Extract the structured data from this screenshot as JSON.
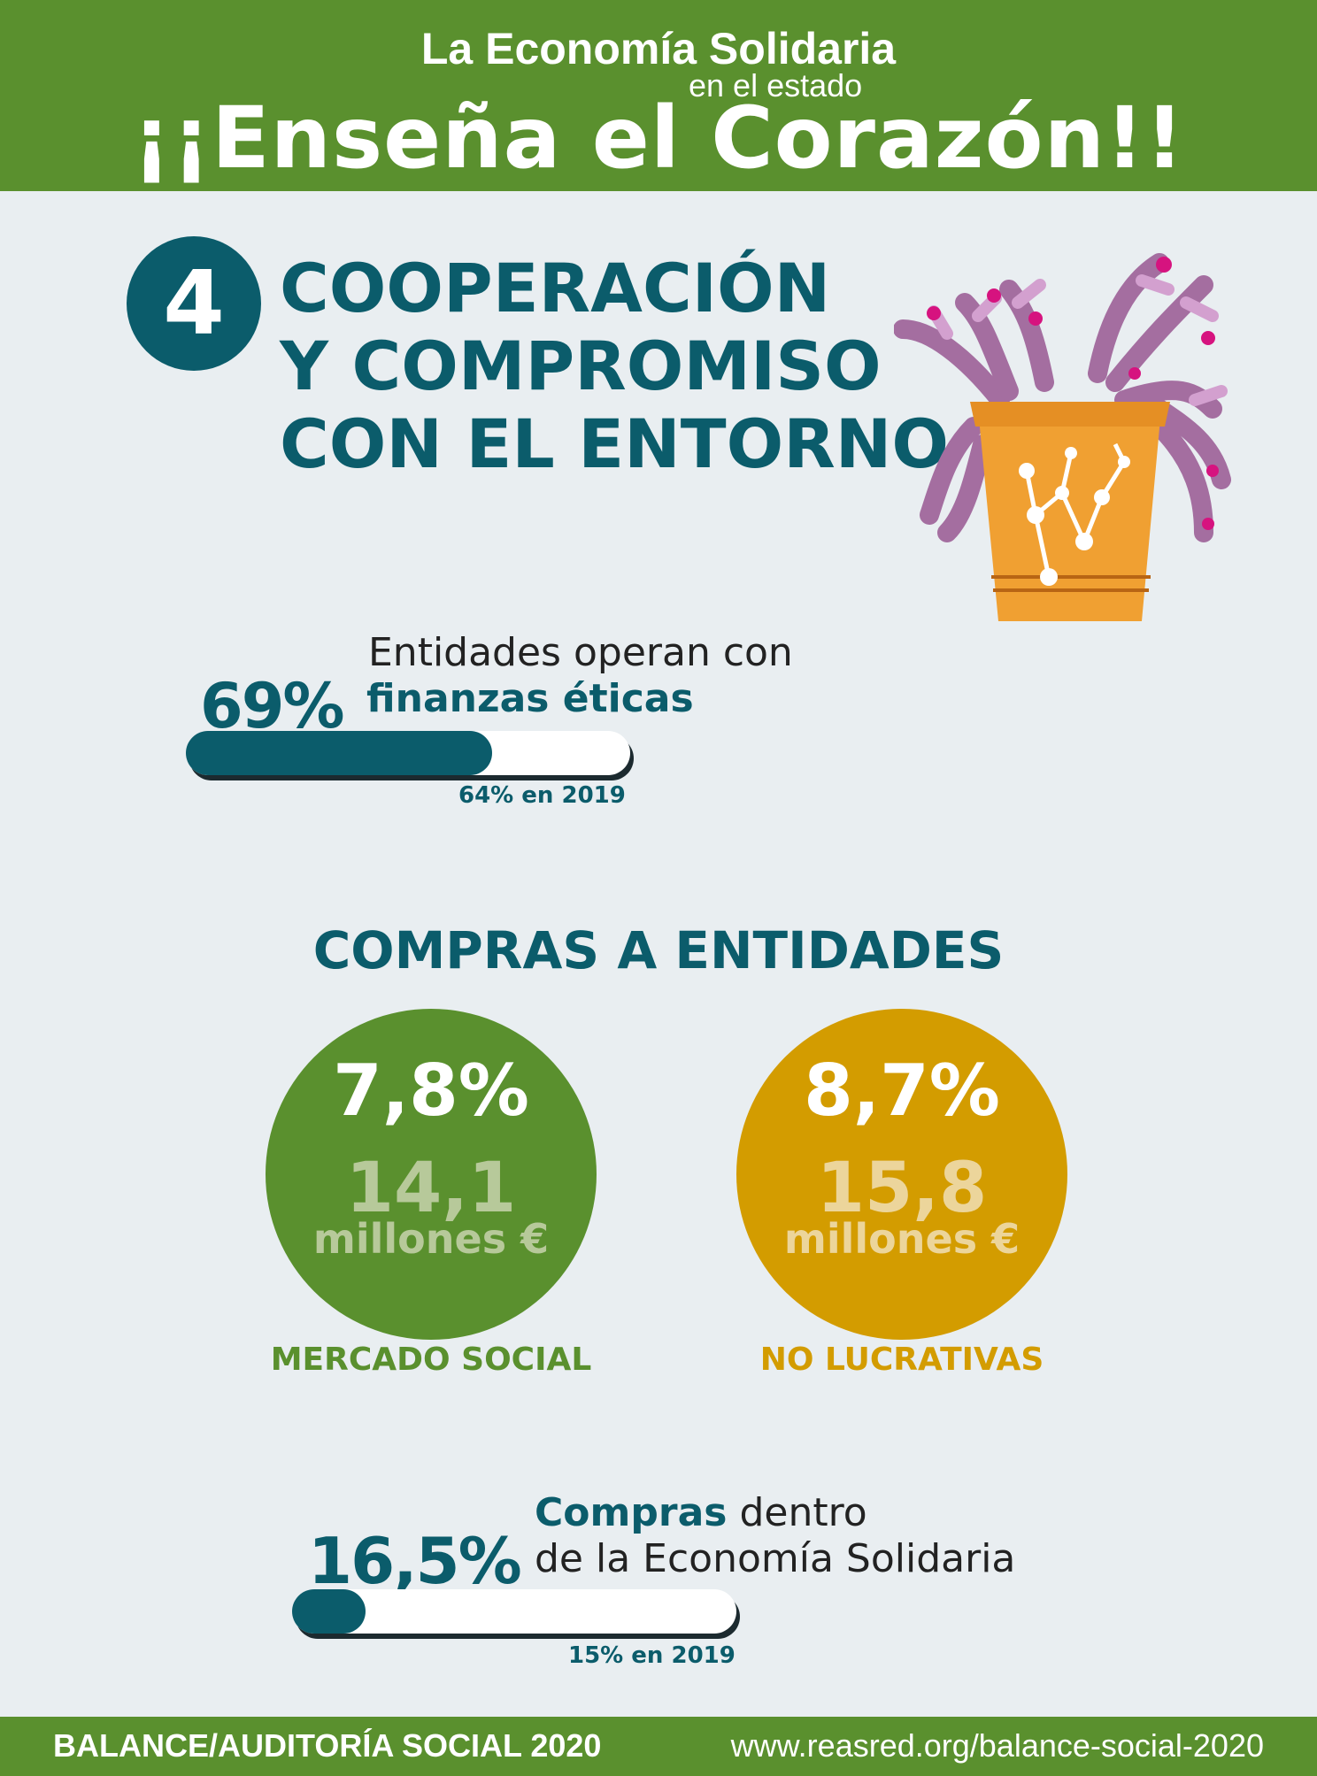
{
  "header": {
    "line1": "La Economía Solidaria",
    "line2": "en el estado",
    "line3": "¡¡Enseña el Corazón!!"
  },
  "section": {
    "number": "4",
    "title_line1": "COOPERACIÓN",
    "title_line2": "Y COMPROMISO",
    "title_line3": "CON EL ENTORNO"
  },
  "stat_finanzas": {
    "label_line1": "Entidades operan con",
    "label_line2": "finanzas éticas",
    "percent": "69%",
    "fill_fraction": 0.69,
    "previous": "64% en 2019"
  },
  "compras": {
    "title": "COMPRAS A ENTIDADES",
    "mercado_social": {
      "percent": "7,8%",
      "value": "14,1",
      "unit": "millones €",
      "label": "MERCADO SOCIAL",
      "color": "#5a902e"
    },
    "no_lucrativas": {
      "percent": "8,7%",
      "value": "15,8",
      "unit": "millones €",
      "label": "NO LUCRATIVAS",
      "color": "#d39c00"
    }
  },
  "stat_compras": {
    "label_bold": "Compras",
    "label_rest": " dentro",
    "label_line2": "de la Economía Solidaria",
    "percent": "16,5%",
    "fill_fraction": 0.165,
    "previous": "15% en 2019"
  },
  "footer": {
    "left": "BALANCE/AUDITORÍA SOCIAL 2020",
    "right": "www.reasred.org/balance-social-2020"
  },
  "colors": {
    "green": "#5a902e",
    "teal": "#0b5c6b",
    "gold": "#d39c00",
    "background": "#e9eef1"
  },
  "icons": {
    "illustration": "potted-plant-illustration"
  }
}
